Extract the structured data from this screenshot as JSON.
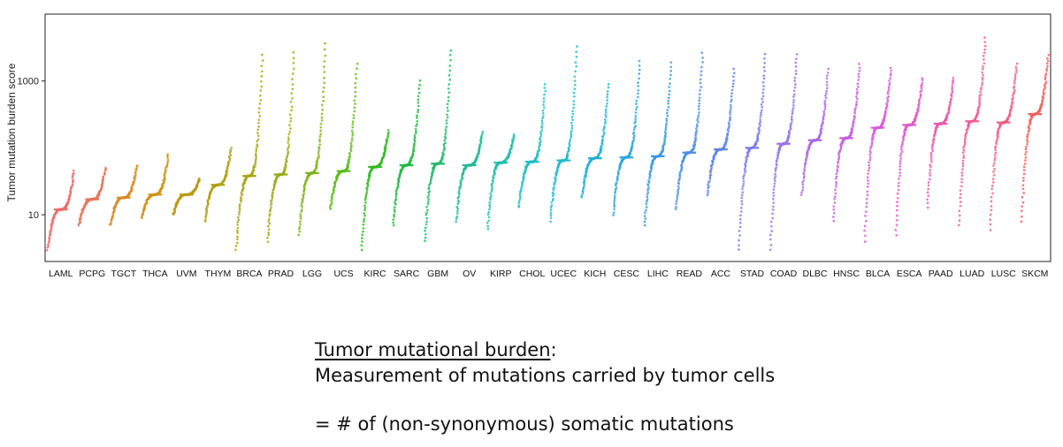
{
  "chart_data": {
    "type": "scatter",
    "ylabel": "Tumor mutation burden score",
    "yscale": "log10",
    "ylim": [
      2,
      10000
    ],
    "y_tick_labels": [
      "10",
      "1000"
    ],
    "y_ticks": [
      10,
      1000
    ],
    "grid": false,
    "legend": "none",
    "categories": [
      "LAML",
      "PCPG",
      "TGCT",
      "THCA",
      "UVM",
      "THYM",
      "BRCA",
      "PRAD",
      "LGG",
      "UCS",
      "KIRC",
      "SARC",
      "GBM",
      "OV",
      "KIRP",
      "CHOL",
      "UCEC",
      "KICH",
      "CESC",
      "LIHC",
      "READ",
      "ACC",
      "STAD",
      "COAD",
      "DLBC",
      "HNSC",
      "BLCA",
      "ESCA",
      "PAAD",
      "LUAD",
      "LUSC",
      "SKCM"
    ],
    "medians": [
      12,
      17,
      18,
      20,
      20,
      28,
      38,
      40,
      42,
      45,
      52,
      55,
      58,
      55,
      60,
      62,
      65,
      70,
      72,
      75,
      85,
      95,
      100,
      115,
      130,
      140,
      200,
      220,
      230,
      250,
      240,
      320
    ],
    "mins": [
      3,
      7,
      7,
      9,
      10,
      8,
      3,
      4,
      5,
      12,
      3,
      7,
      4,
      8,
      6,
      13,
      8,
      18,
      10,
      7,
      12,
      20,
      3,
      3,
      20,
      8,
      4,
      5,
      13,
      7,
      6,
      8
    ],
    "maxs": [
      45,
      50,
      55,
      80,
      35,
      100,
      2500,
      2700,
      3600,
      1800,
      180,
      1000,
      2900,
      170,
      160,
      900,
      3300,
      900,
      2000,
      1900,
      2600,
      1500,
      2500,
      2500,
      1500,
      1800,
      1600,
      1100,
      1100,
      4400,
      1800,
      2400
    ],
    "colors": [
      "#ee6a6a",
      "#e4745a",
      "#d98c2a",
      "#cf9418",
      "#b89a10",
      "#b0a012",
      "#a8a515",
      "#9aaa15",
      "#7fb21a",
      "#5eba20",
      "#2db820",
      "#20b840",
      "#20b86a",
      "#20bb92",
      "#20bea8",
      "#20bec0",
      "#20bacc",
      "#22b0d4",
      "#2ca4dc",
      "#3a98e0",
      "#4c8ee4",
      "#6085e6",
      "#7c7ce8",
      "#9474e6",
      "#aa6ae4",
      "#c260e0",
      "#d45ad6",
      "#e058c4",
      "#e85aac",
      "#ee5e96",
      "#ef5f85",
      "#f0605e"
    ]
  },
  "caption": {
    "term": "Tumor mutational burden",
    "colon": ":",
    "description": "Measurement of mutations carried by tumor cells",
    "definition": "= # of (non-synonymous) somatic mutations"
  }
}
